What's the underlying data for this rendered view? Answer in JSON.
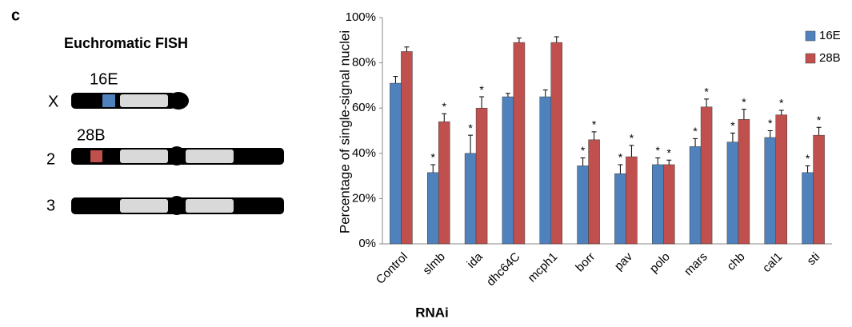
{
  "figure": {
    "panel_label": "c",
    "diagram_title": "Euchromatic FISH",
    "chromosomes": [
      {
        "label": "X",
        "locus": "16E"
      },
      {
        "label": "2",
        "locus": "28B"
      },
      {
        "label": "3"
      }
    ]
  },
  "chart_data": {
    "type": "bar",
    "y_label": "Percentage of single-signal nuclei",
    "x_label": "RNAi",
    "categories": [
      "Control",
      "slmb",
      "ida",
      "dhc64C",
      "mcph1",
      "borr",
      "pav",
      "polo",
      "mars",
      "chb",
      "cal1",
      "sti"
    ],
    "series": [
      {
        "name": "16E",
        "color": "#4f81bd",
        "values": [
          71,
          31.5,
          40,
          65,
          65,
          34.5,
          31,
          35,
          43,
          45,
          47,
          31.5
        ],
        "errors": [
          3,
          3.5,
          8,
          1.5,
          3,
          3.5,
          4,
          3,
          3.5,
          4,
          3,
          3
        ],
        "significance": [
          null,
          "*",
          "*",
          null,
          null,
          "*",
          "*",
          "*",
          "*",
          "*",
          "*",
          "*"
        ]
      },
      {
        "name": "28B",
        "color": "#c0504d",
        "values": [
          85,
          54,
          60,
          89,
          89,
          46,
          38.5,
          35,
          60.5,
          55,
          57,
          48
        ],
        "errors": [
          2,
          3.5,
          5,
          2,
          2.5,
          3.5,
          5,
          2,
          3.5,
          4.5,
          2,
          3.5
        ],
        "significance": [
          null,
          "*",
          "*",
          null,
          null,
          "*",
          "*",
          "*",
          "*",
          "*",
          "*",
          "*"
        ]
      }
    ],
    "ylim": [
      0,
      100
    ],
    "yticks": [
      {
        "value": 0,
        "label": "0%"
      },
      {
        "value": 20,
        "label": "20%"
      },
      {
        "value": 40,
        "label": "40%"
      },
      {
        "value": 60,
        "label": "60%"
      },
      {
        "value": 80,
        "label": "80%"
      },
      {
        "value": 100,
        "label": "100%"
      }
    ],
    "grid": false,
    "legend": "top-right"
  }
}
